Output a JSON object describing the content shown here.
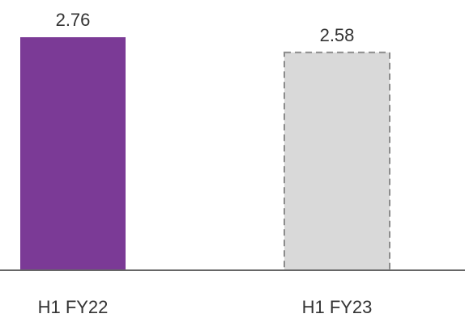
{
  "chart_data": {
    "type": "bar",
    "categories": [
      "H1 FY22",
      "H1 FY23"
    ],
    "values": [
      2.76,
      2.58
    ],
    "value_labels": [
      "2.76",
      "2.58"
    ],
    "ylim": [
      0,
      2.76
    ],
    "grid": false,
    "bar_styles": [
      {
        "fill": "#7b3a96",
        "stroke": "none",
        "dashed": false
      },
      {
        "fill": "#d9d9d9",
        "stroke": "#8c8c8c",
        "dashed": true
      }
    ],
    "baseline_color": "#666666"
  }
}
